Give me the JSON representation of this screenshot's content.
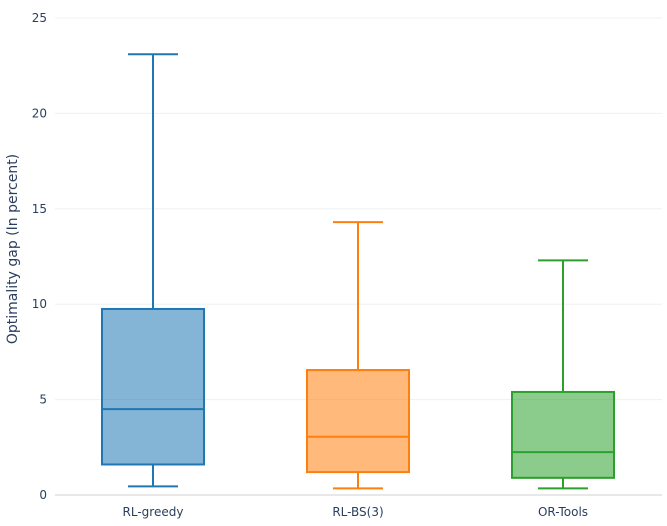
{
  "chart_data": {
    "type": "box",
    "title": "",
    "xlabel": "",
    "ylabel": "Optimality gap (In percent)",
    "ylim": [
      0,
      25
    ],
    "yticks": [
      0,
      5,
      10,
      15,
      20,
      25
    ],
    "grid": true,
    "legend": "none",
    "categories": [
      "RL-greedy",
      "RL-BS(3)",
      "OR-Tools"
    ],
    "series": [
      {
        "min": 0.45,
        "q1": 1.6,
        "median": 4.5,
        "q3": 9.75,
        "max": 23.1,
        "color": "#1f77b4"
      },
      {
        "min": 0.35,
        "q1": 1.2,
        "median": 3.05,
        "q3": 6.55,
        "max": 14.3,
        "color": "#ff7f0e"
      },
      {
        "min": 0.35,
        "q1": 0.9,
        "median": 2.25,
        "q3": 5.4,
        "max": 12.3,
        "color": "#2ca02c"
      }
    ]
  }
}
